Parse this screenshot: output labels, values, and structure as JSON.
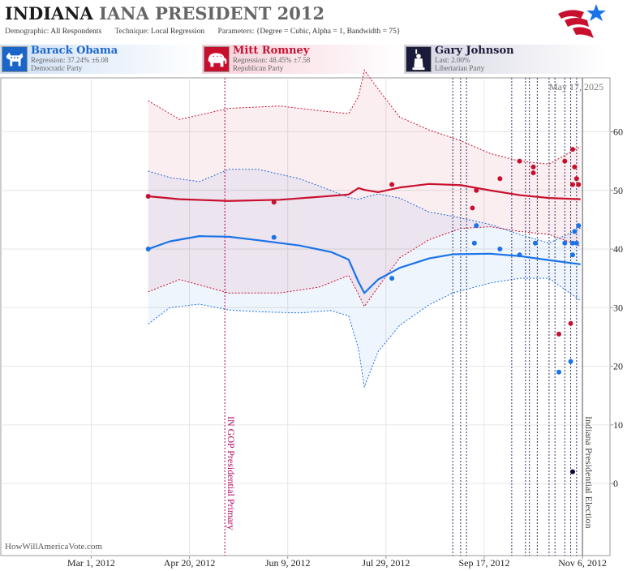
{
  "header": {
    "title_state": "INDIANA",
    "title_race": "IANA PRESIDENT 2012",
    "demographic_label": "Demographic:",
    "demographic_value": "All Respondents",
    "technique_label": "Technique:",
    "technique_value": "Local Regression",
    "parameters_label": "Parameters:",
    "parameters_value": "{Degree = Cubic, Alpha = 1, Bandwidth = 75}"
  },
  "candidates": [
    {
      "name": "Barack Obama",
      "stat": "Regression: 37.24% ±6.08",
      "party": "Democratic Party",
      "icon": "donkey-icon"
    },
    {
      "name": "Mitt Romney",
      "stat": "Regression: 48.45% ±7.58",
      "party": "Republican Party",
      "icon": "elephant-icon"
    },
    {
      "name": "Gary Johnson",
      "stat": "Last: 2.00%",
      "party": "Libertarian Party",
      "icon": "statue-of-liberty-icon"
    }
  ],
  "colors": {
    "democrat": "#1a73e8",
    "republican": "#c8102e",
    "libertarian": "#0a0a3a",
    "event": "#b4005a"
  },
  "source": "HowWillAmericaVote.com",
  "chart_data": {
    "type": "scatter",
    "date_label": "May 17, 2025",
    "x_range": [
      "2012-01-15",
      "2012-11-20"
    ],
    "y_range": [
      -12.3,
      69.2
    ],
    "x_ticks": [
      "Mar 1, 2012",
      "Apr 20, 2012",
      "Jun 9, 2012",
      "Jul 29, 2012",
      "Sep 17, 2012",
      "Nov 6, 2012"
    ],
    "y_ticks": [
      0,
      10,
      20,
      30,
      40,
      50,
      60
    ],
    "events": [
      {
        "date": "2012-05-08",
        "label": "IN GOP Presidential Primary"
      },
      {
        "date": "2012-11-06",
        "label": "Indiana Presidential Election"
      }
    ],
    "poll_dates": [
      "2012-09-01",
      "2012-09-05",
      "2012-09-08",
      "2012-10-01",
      "2012-10-08",
      "2012-10-10",
      "2012-10-14",
      "2012-10-20",
      "2012-10-23",
      "2012-10-28",
      "2012-10-31",
      "2012-11-03"
    ],
    "series": [
      {
        "name": "Barack Obama",
        "party": "democrat",
        "polls": [
          {
            "date": "2012-03-30",
            "value": 40
          },
          {
            "date": "2012-06-02",
            "value": 42
          },
          {
            "date": "2012-08-01",
            "value": 35
          },
          {
            "date": "2012-09-12",
            "value": 41
          },
          {
            "date": "2012-09-13",
            "value": 44
          },
          {
            "date": "2012-09-25",
            "value": 40
          },
          {
            "date": "2012-10-05",
            "value": 39
          },
          {
            "date": "2012-10-13",
            "value": 41
          },
          {
            "date": "2012-10-25",
            "value": 19
          },
          {
            "date": "2012-10-28",
            "value": 41
          },
          {
            "date": "2012-10-31",
            "value": 20.8
          },
          {
            "date": "2012-11-01",
            "value": 39
          },
          {
            "date": "2012-11-01",
            "value": 41
          },
          {
            "date": "2012-11-02",
            "value": 43
          },
          {
            "date": "2012-11-03",
            "value": 41
          },
          {
            "date": "2012-11-04",
            "value": 44
          }
        ],
        "trend": [
          {
            "date": "2012-03-30",
            "value": 40.0,
            "low": 27.2,
            "high": 53.3
          },
          {
            "date": "2012-04-10",
            "value": 41.3,
            "low": 30.0,
            "high": 52.2
          },
          {
            "date": "2012-04-25",
            "value": 42.2,
            "low": 30.6,
            "high": 51.5
          },
          {
            "date": "2012-05-10",
            "value": 42.1,
            "low": 29.6,
            "high": 53.6
          },
          {
            "date": "2012-05-25",
            "value": 41.5,
            "low": 29.3,
            "high": 53.6
          },
          {
            "date": "2012-06-15",
            "value": 40.6,
            "low": 29.1,
            "high": 52.0
          },
          {
            "date": "2012-07-01",
            "value": 39.5,
            "low": 29.5,
            "high": 50.0
          },
          {
            "date": "2012-07-10",
            "value": 38.2,
            "low": 28.6,
            "high": 48.8
          },
          {
            "date": "2012-07-15",
            "value": 34.4,
            "low": 23.0,
            "high": 48.5
          },
          {
            "date": "2012-07-18",
            "value": 32.5,
            "low": 16.5,
            "high": 48.8
          },
          {
            "date": "2012-07-25",
            "value": 34.8,
            "low": 22.5,
            "high": 49.4
          },
          {
            "date": "2012-08-05",
            "value": 36.8,
            "low": 27.0,
            "high": 48.7
          },
          {
            "date": "2012-08-20",
            "value": 38.4,
            "low": 30.5,
            "high": 46.3
          },
          {
            "date": "2012-09-01",
            "value": 39.1,
            "low": 32.5,
            "high": 45.6
          },
          {
            "date": "2012-09-20",
            "value": 39.2,
            "low": 34.2,
            "high": 44.2
          },
          {
            "date": "2012-10-05",
            "value": 38.8,
            "low": 35.0,
            "high": 42.5
          },
          {
            "date": "2012-10-20",
            "value": 38.1,
            "low": 35.0,
            "high": 41.0
          },
          {
            "date": "2012-11-05",
            "value": 37.4,
            "low": 31.2,
            "high": 43.6
          }
        ]
      },
      {
        "name": "Mitt Romney",
        "party": "republican",
        "polls": [
          {
            "date": "2012-03-30",
            "value": 49
          },
          {
            "date": "2012-06-02",
            "value": 48
          },
          {
            "date": "2012-08-01",
            "value": 51
          },
          {
            "date": "2012-09-11",
            "value": 47
          },
          {
            "date": "2012-09-13",
            "value": 50
          },
          {
            "date": "2012-09-25",
            "value": 52
          },
          {
            "date": "2012-10-05",
            "value": 55
          },
          {
            "date": "2012-10-12",
            "value": 53
          },
          {
            "date": "2012-10-12",
            "value": 54
          },
          {
            "date": "2012-10-25",
            "value": 25.5
          },
          {
            "date": "2012-10-28",
            "value": 55
          },
          {
            "date": "2012-10-31",
            "value": 27.3
          },
          {
            "date": "2012-11-01",
            "value": 57
          },
          {
            "date": "2012-11-01",
            "value": 51
          },
          {
            "date": "2012-11-02",
            "value": 54
          },
          {
            "date": "2012-11-03",
            "value": 52
          },
          {
            "date": "2012-11-04",
            "value": 51
          }
        ],
        "trend": [
          {
            "date": "2012-03-30",
            "value": 49.0,
            "low": 32.7,
            "high": 65.3
          },
          {
            "date": "2012-04-15",
            "value": 48.5,
            "low": 34.8,
            "high": 62.1
          },
          {
            "date": "2012-05-10",
            "value": 48.2,
            "low": 32.5,
            "high": 64.0
          },
          {
            "date": "2012-06-05",
            "value": 48.4,
            "low": 32.5,
            "high": 64.4
          },
          {
            "date": "2012-06-25",
            "value": 48.9,
            "low": 33.5,
            "high": 63.6
          },
          {
            "date": "2012-07-10",
            "value": 49.3,
            "low": 35.5,
            "high": 63.1
          },
          {
            "date": "2012-07-15",
            "value": 50.4,
            "low": 32.3,
            "high": 66.0
          },
          {
            "date": "2012-07-18",
            "value": 50.1,
            "low": 30.2,
            "high": 70.5
          },
          {
            "date": "2012-07-25",
            "value": 49.7,
            "low": 33.5,
            "high": 67.3
          },
          {
            "date": "2012-08-05",
            "value": 50.5,
            "low": 38.5,
            "high": 62.5
          },
          {
            "date": "2012-08-20",
            "value": 51.1,
            "low": 41.6,
            "high": 60.3
          },
          {
            "date": "2012-09-05",
            "value": 50.9,
            "low": 43.5,
            "high": 58.5
          },
          {
            "date": "2012-09-20",
            "value": 50.0,
            "low": 43.8,
            "high": 56.3
          },
          {
            "date": "2012-10-05",
            "value": 49.2,
            "low": 43.0,
            "high": 55.0
          },
          {
            "date": "2012-10-20",
            "value": 48.7,
            "low": 42.5,
            "high": 54.5
          },
          {
            "date": "2012-11-05",
            "value": 48.5,
            "low": 40.5,
            "high": 57.5
          }
        ]
      },
      {
        "name": "Gary Johnson",
        "party": "libertarian",
        "polls": [
          {
            "date": "2012-11-01",
            "value": 2
          }
        ],
        "trend": []
      }
    ]
  }
}
